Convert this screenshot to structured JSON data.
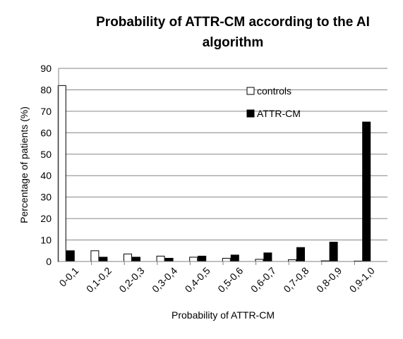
{
  "chart_data": {
    "type": "bar",
    "title_line1": "Probability of ATTR-CM according to the AI",
    "title_line2": "algorithm",
    "xlabel": "Probability of ATTR-CM",
    "ylabel": "Percentage of patients (%)",
    "ylim": [
      0,
      90
    ],
    "yticks": [
      "0",
      "10",
      "20",
      "30",
      "40",
      "50",
      "60",
      "70",
      "80",
      "90"
    ],
    "grid": true,
    "legend_position": "top-right",
    "categories": [
      "0-0,1",
      "0,1-0,2",
      "0,2-0,3",
      "0,3-0,4",
      "0,4-0,5",
      "0,5-0,6",
      "0,6-0,7",
      "0,7-0,8",
      "0,8-0,9",
      "0,9-1,0"
    ],
    "series": [
      {
        "name": "controls",
        "fill": "#ffffff",
        "values": [
          82,
          5,
          3.5,
          2.5,
          2,
          1.5,
          1,
          0.8,
          0.3,
          0.2
        ]
      },
      {
        "name": "ATTR-CM",
        "fill": "#000000",
        "values": [
          5,
          2,
          2,
          1.5,
          2.5,
          3,
          4,
          6.5,
          9,
          65
        ]
      }
    ]
  }
}
